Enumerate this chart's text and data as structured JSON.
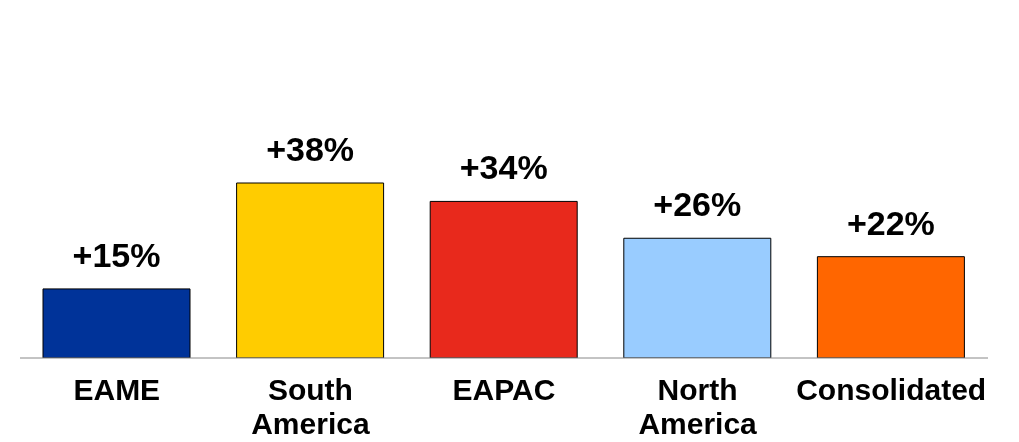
{
  "chart_data": {
    "type": "bar",
    "categories": [
      "EAME",
      "South America",
      "EAPAC",
      "North America",
      "Consolidated"
    ],
    "values": [
      15,
      38,
      34,
      26,
      22
    ],
    "colors": [
      "#003399",
      "#ffcc00",
      "#e8291c",
      "#99ccff",
      "#ff6600"
    ],
    "value_labels": [
      "+15%",
      "+38%",
      "+34%",
      "+26%",
      "+22%"
    ],
    "grid": false,
    "legend": false
  }
}
